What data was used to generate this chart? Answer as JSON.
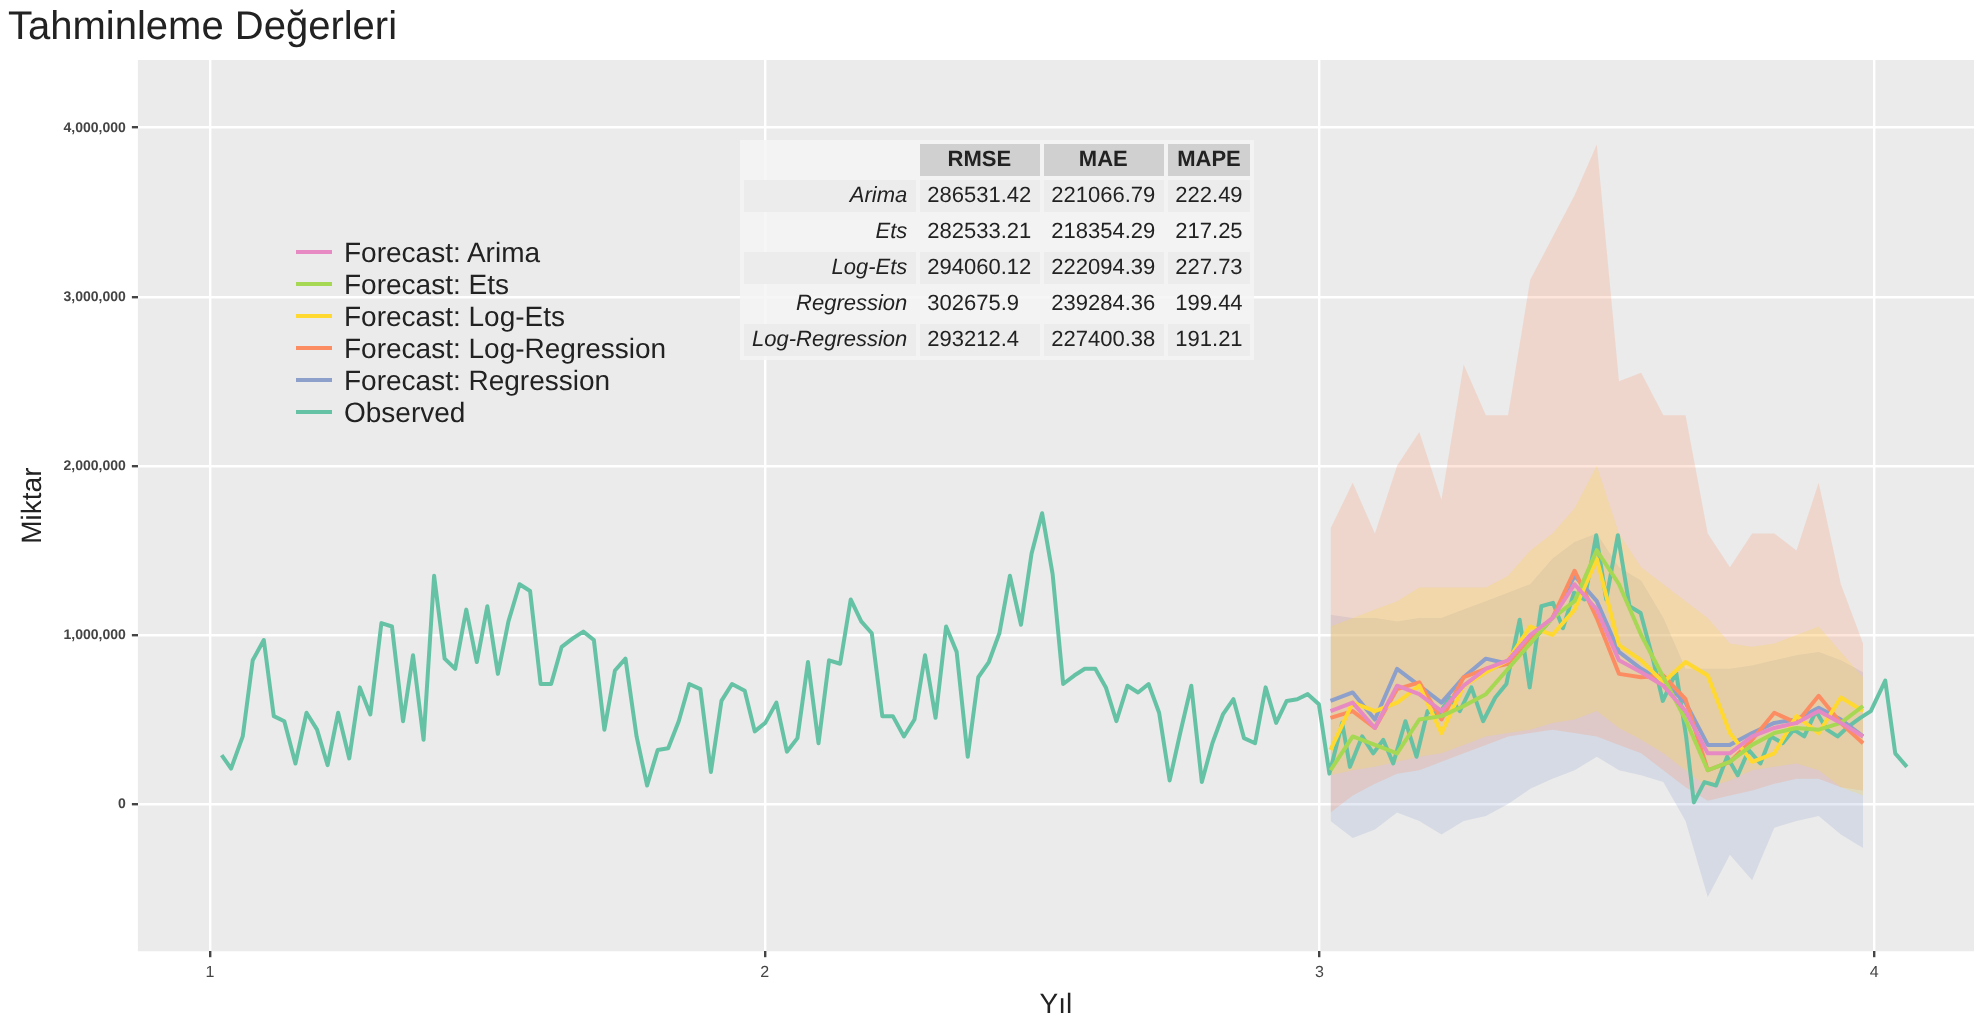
{
  "chart_data": {
    "type": "line",
    "title": "Tahminleme Değerleri",
    "xlabel": "Yıl",
    "ylabel": "Miktar",
    "xlim": [
      0.87,
      4.18
    ],
    "xticks": [
      1,
      2,
      3,
      4
    ],
    "ylim": [
      -870000,
      4400000
    ],
    "yticks": [
      {
        "value": 0,
        "label": "0"
      },
      {
        "value": 1000000,
        "label": "1,000,000"
      },
      {
        "value": 2000000,
        "label": "2,000,000"
      },
      {
        "value": 3000000,
        "label": "3,000,000"
      },
      {
        "value": 4000000,
        "label": "4,000,000"
      }
    ],
    "grid": true,
    "legend": "top left",
    "annotations": [
      "RMSE",
      "MAE",
      "MAPE",
      "Arima",
      "286531.42",
      "221066.79",
      "222.49",
      "Ets",
      "282533.21",
      "218354.29",
      "217.25",
      "Log-Ets",
      "294060.12",
      "222094.39",
      "227.73",
      "Regression",
      "302675.9",
      "239284.36",
      "199.44",
      "Log-Regression",
      "293212.4",
      "227400.38",
      "191.21"
    ],
    "series": [
      {
        "name": "Forecast: Arima",
        "color": "#e78ac3",
        "x": [
          3.02,
          3.06,
          3.1,
          3.14,
          3.18,
          3.22,
          3.26,
          3.3,
          3.34,
          3.38,
          3.42,
          3.46,
          3.5,
          3.54,
          3.58,
          3.62,
          3.66,
          3.7,
          3.74,
          3.78,
          3.82,
          3.86,
          3.9,
          3.94,
          3.98
        ],
        "values": [
          550000,
          600000,
          450000,
          700000,
          650000,
          550000,
          700000,
          800000,
          850000,
          1000000,
          1100000,
          1300000,
          1150000,
          850000,
          780000,
          700000,
          550000,
          300000,
          300000,
          400000,
          450000,
          480000,
          550000,
          480000,
          400000
        ]
      },
      {
        "name": "Forecast: Ets",
        "color": "#a6d854",
        "x": [
          3.02,
          3.06,
          3.1,
          3.14,
          3.18,
          3.22,
          3.26,
          3.3,
          3.34,
          3.38,
          3.42,
          3.46,
          3.5,
          3.54,
          3.58,
          3.62,
          3.66,
          3.7,
          3.74,
          3.78,
          3.82,
          3.86,
          3.9,
          3.94,
          3.98
        ],
        "values": [
          200000,
          400000,
          350000,
          300000,
          500000,
          520000,
          580000,
          650000,
          800000,
          950000,
          1100000,
          1200000,
          1500000,
          1300000,
          1000000,
          750000,
          500000,
          200000,
          250000,
          350000,
          420000,
          450000,
          440000,
          480000,
          580000
        ]
      },
      {
        "name": "Forecast: Log-Ets",
        "color": "#ffd92f",
        "x": [
          3.02,
          3.06,
          3.1,
          3.14,
          3.18,
          3.22,
          3.26,
          3.3,
          3.34,
          3.38,
          3.42,
          3.46,
          3.5,
          3.54,
          3.58,
          3.62,
          3.66,
          3.7,
          3.74,
          3.78,
          3.82,
          3.86,
          3.9,
          3.94,
          3.98
        ],
        "values": [
          320000,
          600000,
          550000,
          600000,
          700000,
          420000,
          700000,
          780000,
          850000,
          1050000,
          1000000,
          1150000,
          1450000,
          940000,
          850000,
          720000,
          840000,
          760000,
          420000,
          250000,
          300000,
          520000,
          420000,
          630000,
          550000
        ],
        "upper": [
          1050000,
          1100000,
          1150000,
          1200000,
          1280000,
          1280000,
          1280000,
          1280000,
          1350000,
          1500000,
          1600000,
          1750000,
          2000000,
          1600000,
          1400000,
          1300000,
          1200000,
          1100000,
          950000,
          930000,
          950000,
          1000000,
          1050000,
          900000,
          750000
        ],
        "lower": [
          170000,
          200000,
          220000,
          250000,
          280000,
          300000,
          350000,
          400000,
          420000,
          440000,
          480000,
          500000,
          550000,
          450000,
          380000,
          300000,
          200000,
          100000,
          140000,
          200000,
          220000,
          240000,
          200000,
          100000,
          50000
        ]
      },
      {
        "name": "Forecast: Log-Regression",
        "color": "#fc8d62",
        "x": [
          3.02,
          3.06,
          3.1,
          3.14,
          3.18,
          3.22,
          3.26,
          3.3,
          3.34,
          3.38,
          3.42,
          3.46,
          3.5,
          3.54,
          3.58,
          3.62,
          3.66,
          3.7,
          3.74,
          3.78,
          3.82,
          3.86,
          3.9,
          3.94,
          3.98
        ],
        "values": [
          510000,
          550000,
          450000,
          680000,
          720000,
          500000,
          750000,
          800000,
          830000,
          980000,
          1100000,
          1380000,
          1100000,
          770000,
          750000,
          760000,
          620000,
          200000,
          250000,
          380000,
          540000,
          480000,
          640000,
          480000,
          360000
        ],
        "upper": [
          1630000,
          1900000,
          1600000,
          2000000,
          2200000,
          1800000,
          2600000,
          2300000,
          2300000,
          3100000,
          3350000,
          3600000,
          3900000,
          2500000,
          2550000,
          2300000,
          2300000,
          1600000,
          1400000,
          1600000,
          1600000,
          1500000,
          1900000,
          1300000,
          950000
        ],
        "lower": [
          -50000,
          50000,
          120000,
          180000,
          200000,
          250000,
          300000,
          350000,
          400000,
          420000,
          440000,
          420000,
          400000,
          350000,
          300000,
          200000,
          100000,
          20000,
          50000,
          80000,
          120000,
          150000,
          150000,
          100000,
          80000
        ]
      },
      {
        "name": "Forecast: Regression",
        "color": "#8da0cb",
        "x": [
          3.02,
          3.06,
          3.1,
          3.14,
          3.18,
          3.22,
          3.26,
          3.3,
          3.34,
          3.38,
          3.42,
          3.46,
          3.5,
          3.54,
          3.58,
          3.62,
          3.66,
          3.7,
          3.74,
          3.78,
          3.82,
          3.86,
          3.9,
          3.94,
          3.98
        ],
        "values": [
          610000,
          660000,
          500000,
          800000,
          700000,
          600000,
          750000,
          860000,
          830000,
          950000,
          1100000,
          1350000,
          1200000,
          900000,
          800000,
          720000,
          600000,
          350000,
          350000,
          420000,
          480000,
          500000,
          570000,
          500000,
          400000
        ],
        "upper": [
          1120000,
          1100000,
          1100000,
          1080000,
          1100000,
          1100000,
          1150000,
          1200000,
          1250000,
          1300000,
          1450000,
          1550000,
          1600000,
          1400000,
          1320000,
          1100000,
          800000,
          800000,
          800000,
          820000,
          850000,
          880000,
          900000,
          850000,
          780000
        ],
        "lower": [
          -100000,
          -200000,
          -150000,
          -50000,
          -100000,
          -180000,
          -100000,
          -70000,
          0,
          90000,
          150000,
          200000,
          280000,
          200000,
          170000,
          130000,
          -100000,
          -550000,
          -300000,
          -450000,
          -140000,
          -100000,
          -70000,
          -180000,
          -260000
        ]
      },
      {
        "name": "Observed",
        "color": "#66c2a5",
        "x": [
          1.021,
          1.038,
          1.059,
          1.077,
          1.097,
          1.115,
          1.134,
          1.154,
          1.174,
          1.193,
          1.212,
          1.231,
          1.251,
          1.27,
          1.289,
          1.309,
          1.328,
          1.348,
          1.366,
          1.385,
          1.404,
          1.423,
          1.442,
          1.462,
          1.481,
          1.5,
          1.519,
          1.538,
          1.558,
          1.577,
          1.596,
          1.615,
          1.634,
          1.654,
          1.673,
          1.692,
          1.711,
          1.73,
          1.749,
          1.769,
          1.788,
          1.807,
          1.826,
          1.845,
          1.864,
          1.884,
          1.903,
          1.922,
          1.941,
          1.964,
          1.982,
          2.001,
          2.021,
          2.04,
          2.059,
          2.078,
          2.097,
          2.116,
          2.136,
          2.155,
          2.174,
          2.193,
          2.212,
          2.231,
          2.251,
          2.27,
          2.289,
          2.308,
          2.327,
          2.346,
          2.366,
          2.385,
          2.404,
          2.423,
          2.442,
          2.462,
          2.481,
          2.5,
          2.519,
          2.538,
          2.558,
          2.577,
          2.596,
          2.615,
          2.634,
          2.654,
          2.673,
          2.692,
          2.711,
          2.73,
          2.749,
          2.769,
          2.788,
          2.807,
          2.826,
          2.845,
          2.864,
          2.884,
          2.903,
          2.922,
          2.941,
          2.96,
          2.979,
          2.999,
          3.018,
          3.041,
          3.055,
          3.077,
          3.097,
          3.115,
          3.133,
          3.155,
          3.175,
          3.195,
          3.215,
          3.235,
          3.253,
          3.274,
          3.295,
          3.317,
          3.337,
          3.361,
          3.379,
          3.4,
          3.421,
          3.439,
          3.459,
          3.478,
          3.499,
          3.517,
          3.538,
          3.559,
          3.579,
          3.601,
          3.619,
          3.643,
          3.661,
          3.675,
          3.694,
          3.715,
          3.735,
          3.754,
          3.774,
          3.795,
          3.814,
          3.835,
          3.855,
          3.874,
          3.895,
          3.915,
          3.934,
          3.954,
          3.975,
          3.994,
          4.02,
          4.038,
          4.059
        ],
        "values": [
          290000,
          210000,
          400000,
          850000,
          970000,
          520000,
          490000,
          240000,
          540000,
          440000,
          230000,
          540000,
          270000,
          690000,
          530000,
          1070000,
          1050000,
          490000,
          880000,
          380000,
          1350000,
          860000,
          800000,
          1150000,
          840000,
          1170000,
          770000,
          1080000,
          1300000,
          1260000,
          710000,
          710000,
          930000,
          980000,
          1020000,
          970000,
          440000,
          790000,
          860000,
          400000,
          110000,
          320000,
          330000,
          490000,
          710000,
          680000,
          190000,
          610000,
          710000,
          670000,
          430000,
          480000,
          600000,
          310000,
          390000,
          840000,
          360000,
          850000,
          830000,
          1210000,
          1080000,
          1010000,
          520000,
          520000,
          400000,
          500000,
          880000,
          510000,
          1050000,
          900000,
          280000,
          750000,
          840000,
          1010000,
          1350000,
          1060000,
          1480000,
          1720000,
          1360000,
          710000,
          760000,
          800000,
          800000,
          690000,
          490000,
          700000,
          660000,
          710000,
          540000,
          140000,
          420000,
          700000,
          130000,
          360000,
          530000,
          620000,
          390000,
          360000,
          690000,
          480000,
          610000,
          620000,
          650000,
          590000,
          180000,
          480000,
          220000,
          400000,
          300000,
          380000,
          240000,
          490000,
          280000,
          550000,
          530000,
          630000,
          550000,
          690000,
          490000,
          630000,
          710000,
          1090000,
          690000,
          1170000,
          1190000,
          1040000,
          1250000,
          1210000,
          1590000,
          1210000,
          1590000,
          1170000,
          1130000,
          860000,
          610000,
          780000,
          400000,
          10000,
          130000,
          110000,
          280000,
          170000,
          320000,
          240000,
          400000,
          360000,
          440000,
          400000,
          550000,
          440000,
          400000,
          460000,
          510000,
          550000,
          730000,
          300000,
          220000
        ]
      }
    ]
  }
}
